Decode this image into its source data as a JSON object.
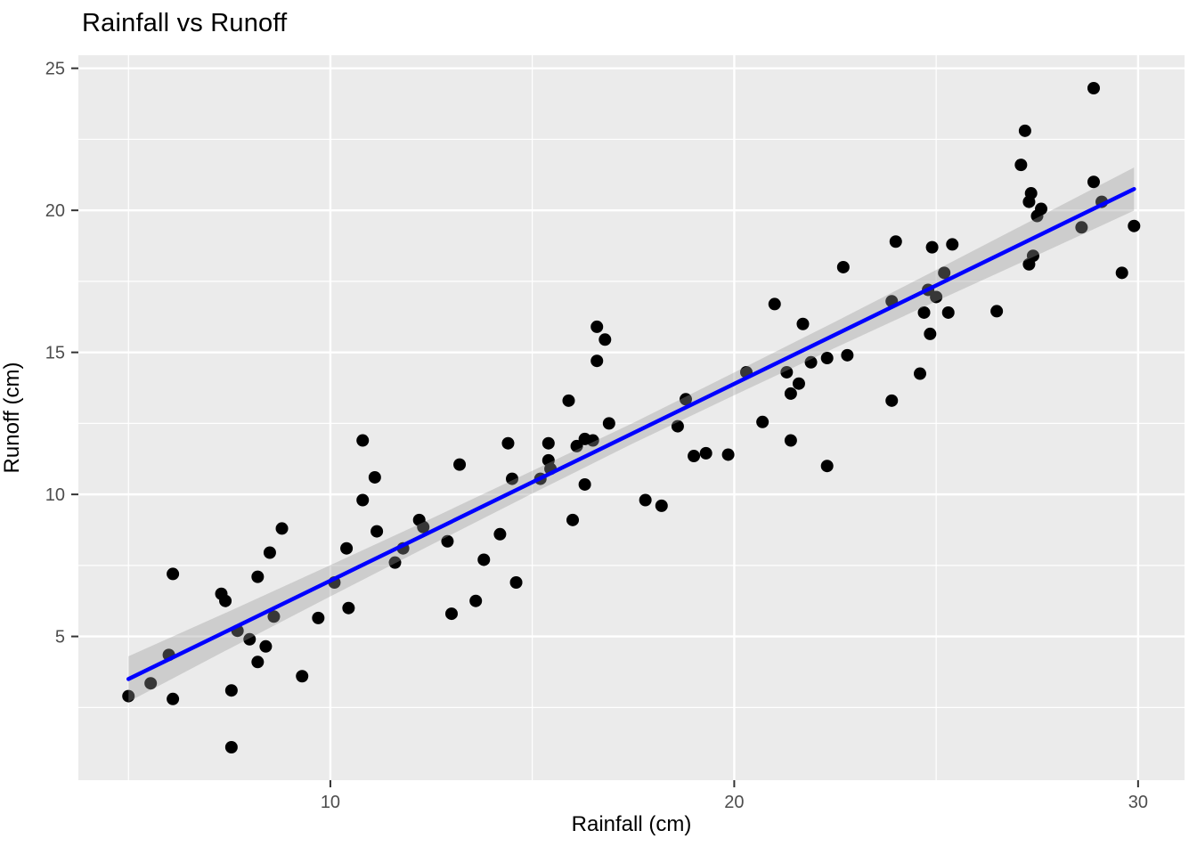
{
  "chart_data": {
    "type": "scatter",
    "title": "Rainfall vs Runoff",
    "xlabel": "Rainfall (cm)",
    "ylabel": "Runoff (cm)",
    "x_domain": [
      3.76,
      31.15
    ],
    "y_domain": [
      -0.06,
      25.46
    ],
    "x_major_ticks": [
      10,
      20,
      30
    ],
    "x_minor_ticks": [
      5,
      15,
      25
    ],
    "y_major_ticks": [
      5,
      10,
      15,
      20,
      25
    ],
    "y_minor_ticks": [
      2.5,
      7.5,
      12.5,
      17.5,
      22.5
    ],
    "grid": true,
    "legend_position": "none",
    "style": {
      "panel_background": "#EBEBEB",
      "grid_color": "#FFFFFF",
      "point_color": "#000000",
      "point_radius": 7,
      "line_color": "#0000FF",
      "line_width": 4.5,
      "band_fill": "#999999",
      "band_opacity": 0.36,
      "tick_color": "#333333",
      "tick_label_color": "#4D4D4D",
      "title_color": "#000000"
    },
    "points": [
      [
        5.0,
        2.9
      ],
      [
        5.55,
        3.35
      ],
      [
        6.0,
        4.35
      ],
      [
        6.1,
        7.2
      ],
      [
        6.1,
        2.8
      ],
      [
        7.3,
        6.5
      ],
      [
        7.4,
        6.25
      ],
      [
        7.55,
        3.1
      ],
      [
        7.55,
        1.1
      ],
      [
        7.7,
        5.2
      ],
      [
        8.0,
        4.9
      ],
      [
        8.2,
        7.1
      ],
      [
        8.2,
        4.1
      ],
      [
        8.4,
        4.65
      ],
      [
        8.5,
        7.95
      ],
      [
        8.6,
        5.7
      ],
      [
        8.8,
        8.8
      ],
      [
        9.3,
        3.6
      ],
      [
        9.7,
        5.65
      ],
      [
        10.1,
        6.9
      ],
      [
        10.4,
        8.1
      ],
      [
        10.45,
        6.0
      ],
      [
        10.8,
        11.9
      ],
      [
        10.8,
        9.8
      ],
      [
        11.1,
        10.6
      ],
      [
        11.15,
        8.7
      ],
      [
        11.6,
        7.6
      ],
      [
        11.8,
        8.1
      ],
      [
        12.2,
        9.1
      ],
      [
        12.3,
        8.85
      ],
      [
        12.9,
        8.35
      ],
      [
        13.0,
        5.8
      ],
      [
        13.2,
        11.05
      ],
      [
        13.6,
        6.25
      ],
      [
        13.8,
        7.7
      ],
      [
        14.2,
        8.6
      ],
      [
        14.4,
        11.8
      ],
      [
        14.5,
        10.55
      ],
      [
        14.6,
        6.9
      ],
      [
        15.2,
        10.55
      ],
      [
        15.4,
        11.8
      ],
      [
        15.4,
        11.2
      ],
      [
        15.45,
        10.9
      ],
      [
        15.9,
        13.3
      ],
      [
        16.0,
        9.1
      ],
      [
        16.1,
        11.7
      ],
      [
        16.3,
        11.95
      ],
      [
        16.3,
        10.35
      ],
      [
        16.5,
        11.9
      ],
      [
        16.6,
        15.9
      ],
      [
        16.6,
        14.7
      ],
      [
        16.8,
        15.45
      ],
      [
        16.9,
        12.5
      ],
      [
        17.8,
        9.8
      ],
      [
        18.2,
        9.6
      ],
      [
        18.6,
        12.4
      ],
      [
        18.8,
        13.35
      ],
      [
        19.0,
        11.35
      ],
      [
        19.3,
        11.45
      ],
      [
        19.85,
        11.4
      ],
      [
        20.3,
        14.3
      ],
      [
        20.7,
        12.55
      ],
      [
        21.0,
        16.7
      ],
      [
        21.3,
        14.3
      ],
      [
        21.4,
        13.55
      ],
      [
        21.4,
        11.9
      ],
      [
        21.6,
        13.9
      ],
      [
        21.7,
        16.0
      ],
      [
        21.9,
        14.65
      ],
      [
        22.3,
        14.8
      ],
      [
        22.3,
        11.0
      ],
      [
        22.7,
        18.0
      ],
      [
        22.8,
        14.9
      ],
      [
        23.9,
        16.8
      ],
      [
        23.9,
        13.3
      ],
      [
        24.0,
        18.9
      ],
      [
        24.6,
        14.25
      ],
      [
        24.7,
        16.4
      ],
      [
        24.8,
        17.2
      ],
      [
        24.85,
        15.65
      ],
      [
        24.9,
        18.7
      ],
      [
        25.0,
        16.95
      ],
      [
        25.2,
        17.8
      ],
      [
        25.3,
        16.4
      ],
      [
        25.4,
        18.8
      ],
      [
        26.5,
        16.45
      ],
      [
        27.1,
        21.6
      ],
      [
        27.2,
        22.8
      ],
      [
        27.3,
        20.3
      ],
      [
        27.3,
        18.1
      ],
      [
        27.35,
        20.6
      ],
      [
        27.4,
        18.4
      ],
      [
        27.5,
        19.8
      ],
      [
        27.6,
        20.05
      ],
      [
        28.6,
        19.4
      ],
      [
        28.9,
        24.3
      ],
      [
        28.9,
        21.0
      ],
      [
        29.1,
        20.3
      ],
      [
        29.6,
        17.8
      ],
      [
        29.9,
        19.45
      ]
    ],
    "trend_line": {
      "x1": 5.0,
      "y1": 3.5,
      "x2": 29.9,
      "y2": 20.75
    },
    "confidence_band": {
      "x": [
        5.0,
        7.5,
        10.0,
        12.5,
        15.0,
        17.5,
        20.0,
        22.5,
        25.0,
        27.5,
        29.9
      ],
      "center": [
        3.5,
        5.23,
        6.96,
        8.69,
        10.43,
        12.16,
        13.89,
        15.62,
        17.35,
        19.08,
        20.75
      ],
      "half_width": [
        0.8,
        0.66,
        0.55,
        0.46,
        0.4,
        0.36,
        0.4,
        0.46,
        0.55,
        0.66,
        0.76
      ]
    }
  }
}
